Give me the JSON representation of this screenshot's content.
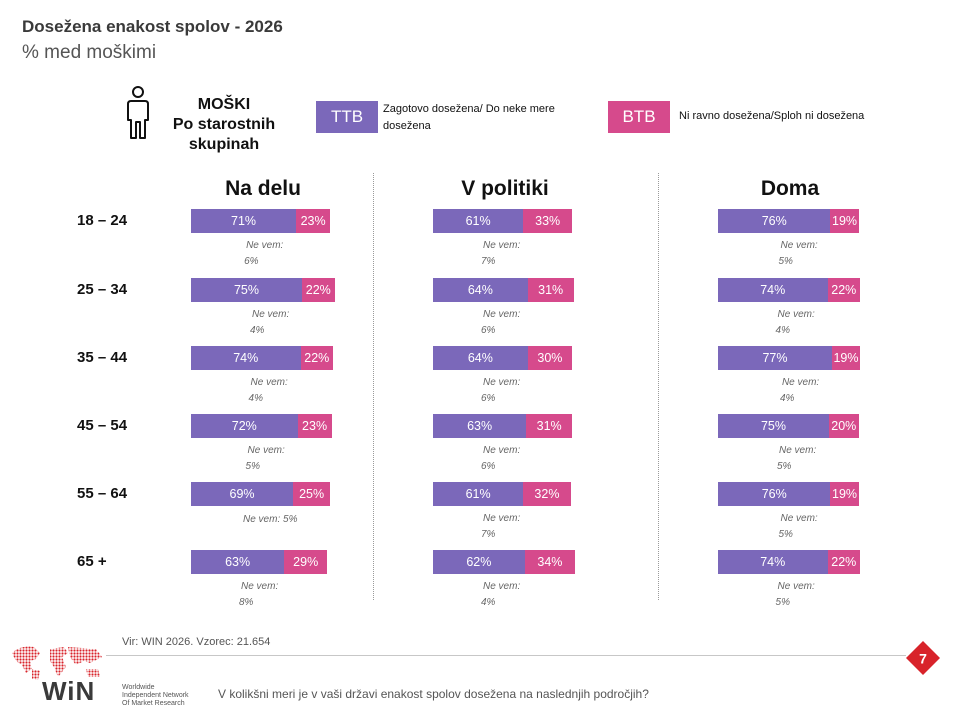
{
  "header": {
    "title": "Dosežena enakost spolov - 2026",
    "subtitle": "% med moškimi"
  },
  "legend": {
    "title_lines": [
      "MOŠKI",
      "Po starostnih",
      "skupinah"
    ],
    "ttb": {
      "label": "TTB",
      "text": "Zagotovo dosežena/ Do neke mere dosežena",
      "color": "#7b68ba"
    },
    "btb": {
      "label": "BTB",
      "text": "Ni ravno dosežena/Sploh ni dosežena",
      "color": "#d64a8c"
    }
  },
  "chart_data": {
    "type": "bar",
    "orientation": "horizontal-stacked",
    "categories": [
      "18 – 24",
      "25 – 34",
      "35 – 44",
      "45 – 54",
      "55 – 64",
      "65 +"
    ],
    "dont_know_label": "Ne vem:",
    "groups": [
      {
        "title": "Na delu",
        "series": [
          {
            "name": "TTB",
            "values": [
              71,
              75,
              74,
              72,
              69,
              63
            ]
          },
          {
            "name": "BTB",
            "values": [
              23,
              22,
              22,
              23,
              25,
              29
            ]
          },
          {
            "name": "Ne vem",
            "values": [
              6,
              4,
              4,
              5,
              5,
              8
            ]
          }
        ]
      },
      {
        "title": "V politiki",
        "series": [
          {
            "name": "TTB",
            "values": [
              61,
              64,
              64,
              63,
              61,
              62
            ]
          },
          {
            "name": "BTB",
            "values": [
              33,
              31,
              30,
              31,
              32,
              34
            ]
          },
          {
            "name": "Ne vem",
            "values": [
              7,
              6,
              6,
              6,
              7,
              4
            ]
          }
        ]
      },
      {
        "title": "Doma",
        "series": [
          {
            "name": "TTB",
            "values": [
              76,
              74,
              77,
              75,
              76,
              74
            ]
          },
          {
            "name": "BTB",
            "values": [
              19,
              22,
              19,
              20,
              19,
              22
            ]
          },
          {
            "name": "Ne vem",
            "values": [
              5,
              4,
              4,
              5,
              5,
              5
            ]
          }
        ]
      }
    ],
    "value_suffix": "%"
  },
  "footer": {
    "source": "Vir: WIN 2026.  Vzorec: 21.654",
    "question": "V kolikšni meri je v vaši državi enakost spolov dosežena na naslednjih področjih?",
    "page_number": "7",
    "logo_text": "WiN",
    "logo_tagline": [
      "Worldwide",
      "Independent Network",
      "Of Market Research"
    ]
  }
}
